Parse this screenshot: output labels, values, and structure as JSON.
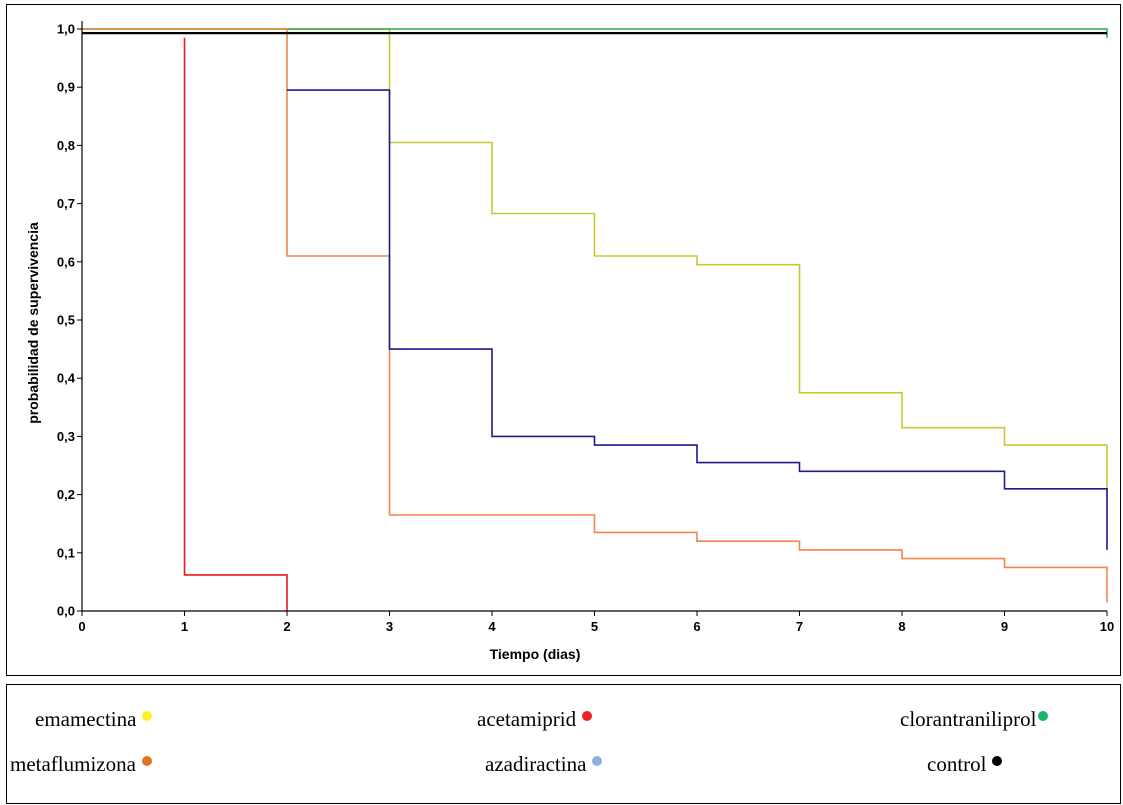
{
  "chart_data": {
    "type": "line",
    "step": true,
    "xlabel": "Tiempo (dias)",
    "ylabel": "probabilidad de supervivencia",
    "xlim": [
      0,
      10
    ],
    "ylim": [
      0,
      1
    ],
    "x_ticks": [
      "0",
      "1",
      "2",
      "3",
      "4",
      "5",
      "6",
      "7",
      "8",
      "9",
      "10"
    ],
    "y_ticks": [
      "0,0",
      "0,1",
      "0,2",
      "0,3",
      "0,4",
      "0,5",
      "0,6",
      "0,7",
      "0,8",
      "0,9",
      "1,0"
    ],
    "grid": false,
    "series": [
      {
        "name": "emamectina",
        "color": "#c8c830",
        "points": [
          [
            0,
            1.0
          ],
          [
            3,
            1.0
          ],
          [
            3,
            0.805
          ],
          [
            4,
            0.805
          ],
          [
            4,
            0.683
          ],
          [
            5,
            0.683
          ],
          [
            5,
            0.61
          ],
          [
            6,
            0.61
          ],
          [
            6,
            0.595
          ],
          [
            7,
            0.595
          ],
          [
            7,
            0.375
          ],
          [
            8,
            0.375
          ],
          [
            8,
            0.315
          ],
          [
            9,
            0.315
          ],
          [
            9,
            0.285
          ],
          [
            10,
            0.285
          ],
          [
            10,
            0.195
          ]
        ]
      },
      {
        "name": "acetamiprid",
        "color": "#e8191e",
        "points": [
          [
            1,
            0.985
          ],
          [
            1,
            0.062
          ],
          [
            2,
            0.062
          ],
          [
            2,
            0.0
          ]
        ]
      },
      {
        "name": "clorantraniliprol",
        "color": "#2eaa4a",
        "points": [
          [
            0,
            1.0
          ],
          [
            10,
            1.0
          ],
          [
            10,
            0.985
          ]
        ]
      },
      {
        "name": "metaflumizona",
        "color": "#f4844a",
        "points": [
          [
            0,
            1.0
          ],
          [
            2,
            1.0
          ],
          [
            2,
            0.61
          ],
          [
            3,
            0.61
          ],
          [
            3,
            0.165
          ],
          [
            5,
            0.165
          ],
          [
            5,
            0.135
          ],
          [
            6,
            0.135
          ],
          [
            6,
            0.12
          ],
          [
            7,
            0.12
          ],
          [
            7,
            0.105
          ],
          [
            8,
            0.105
          ],
          [
            8,
            0.09
          ],
          [
            9,
            0.09
          ],
          [
            9,
            0.075
          ],
          [
            10,
            0.075
          ],
          [
            10,
            0.015
          ]
        ]
      },
      {
        "name": "azadiractina",
        "color": "#1c1c8c",
        "points": [
          [
            2,
            0.895
          ],
          [
            3,
            0.895
          ],
          [
            3,
            0.45
          ],
          [
            4,
            0.45
          ],
          [
            4,
            0.3
          ],
          [
            5,
            0.3
          ],
          [
            5,
            0.285
          ],
          [
            6,
            0.285
          ],
          [
            6,
            0.255
          ],
          [
            7,
            0.255
          ],
          [
            7,
            0.24
          ],
          [
            9,
            0.24
          ],
          [
            9,
            0.21
          ],
          [
            10,
            0.21
          ],
          [
            10,
            0.105
          ]
        ]
      },
      {
        "name": "control",
        "color": "#000000",
        "points": [
          [
            0,
            0.993
          ],
          [
            10,
            0.993
          ]
        ]
      }
    ]
  },
  "legend": [
    {
      "label": "emamectina",
      "dot_color": "#ffee2a"
    },
    {
      "label": "acetamiprid",
      "dot_color": "#ee2222"
    },
    {
      "label": "clorantraniliprol",
      "dot_color": "#19b66a"
    },
    {
      "label": "metaflumizona",
      "dot_color": "#e07420"
    },
    {
      "label": "azadiractina",
      "dot_color": "#8fb0e0"
    },
    {
      "label": "control",
      "dot_color": "#000000"
    }
  ]
}
